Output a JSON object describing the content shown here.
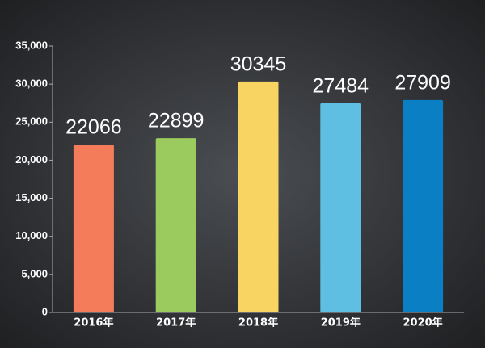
{
  "chart_data": {
    "type": "bar",
    "categories": [
      "2016年",
      "2017年",
      "2018年",
      "2019年",
      "2020年"
    ],
    "values": [
      22066,
      22899,
      30345,
      27484,
      27909
    ],
    "colors": [
      "#f47c5a",
      "#9bcb5e",
      "#f8d462",
      "#5fbfe2",
      "#0b7fc4"
    ],
    "ylim": [
      0,
      35000
    ],
    "yticks": [
      0,
      {
        "value": 5000,
        "label": "5,000"
      },
      {
        "value": 10000,
        "label": "10,000"
      },
      {
        "value": 15000,
        "label": "15,000"
      },
      {
        "value": 20000,
        "label": "20,000"
      },
      {
        "value": 25000,
        "label": "25,000"
      },
      {
        "value": 30000,
        "label": "30,000"
      },
      {
        "value": 35000,
        "label": "35,000"
      }
    ],
    "grid": false
  }
}
